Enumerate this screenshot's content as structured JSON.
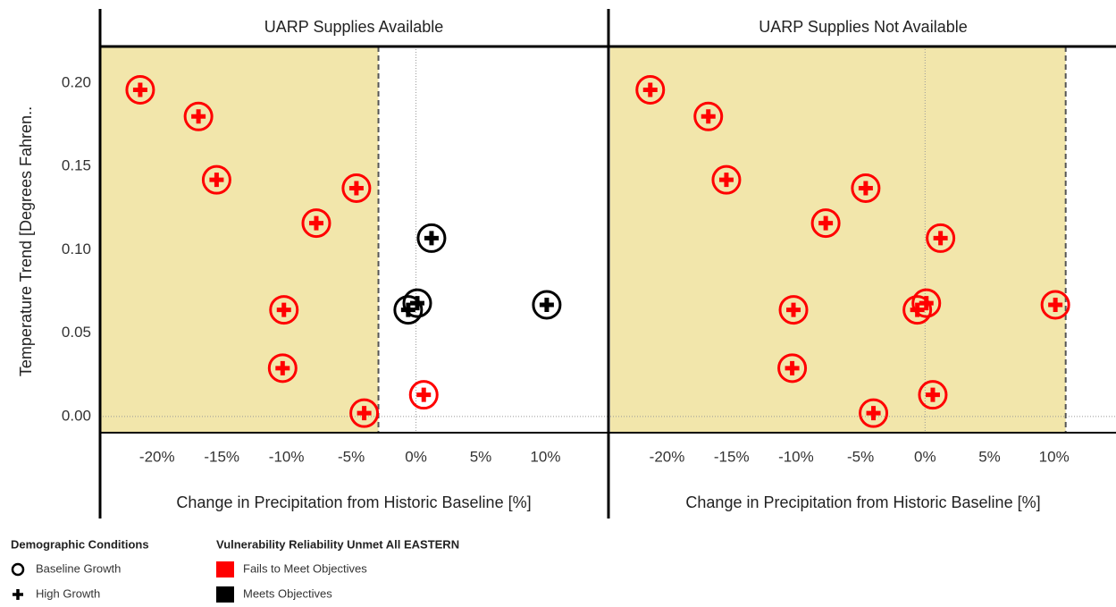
{
  "chart_data": {
    "type": "scatter",
    "y_label": "Temperature Trend [Degrees Fahren..",
    "x_label": "Change in Precipitation from Historic Baseline [%]",
    "xlim": [
      -24.4,
      14.8
    ],
    "ylim": [
      -0.0097,
      0.222
    ],
    "xticks": [
      {
        "value": -20,
        "label": "-20%"
      },
      {
        "value": -15,
        "label": "-15%"
      },
      {
        "value": -10,
        "label": "-10%"
      },
      {
        "value": -5,
        "label": "-5%"
      },
      {
        "value": 0,
        "label": "0%"
      },
      {
        "value": 5,
        "label": "5%"
      },
      {
        "value": 10,
        "label": "10%"
      }
    ],
    "yticks": [
      {
        "value": 0,
        "label": "0.00"
      },
      {
        "value": 0.05,
        "label": "0.05"
      },
      {
        "value": 0.1,
        "label": "0.10"
      },
      {
        "value": 0.15,
        "label": "0.15"
      },
      {
        "value": 0.2,
        "label": "0.20"
      }
    ],
    "zero_lines": true,
    "shade_color": "#f2e6ab",
    "panels": [
      {
        "title": "UARP Supplies Available",
        "shade_to": -2.9,
        "series": [
          {
            "name": "Fails to Meet Objectives",
            "color": "#ff0000",
            "x": [
              -21.3,
              -16.8,
              -15.4,
              -4.6,
              -7.7,
              -10.2,
              -10.3,
              -4.0,
              0.6
            ],
            "y": [
              0.196,
              0.18,
              0.142,
              0.137,
              0.116,
              0.064,
              0.029,
              0.002,
              0.013
            ]
          },
          {
            "name": "Meets Objectives",
            "color": "#000000",
            "x": [
              1.2,
              0.1,
              -0.6,
              10.1
            ],
            "y": [
              0.107,
              0.068,
              0.064,
              0.067
            ]
          }
        ]
      },
      {
        "title": "UARP Supplies Not Available",
        "shade_to": 10.9,
        "series": [
          {
            "name": "Fails to Meet Objectives",
            "color": "#ff0000",
            "x": [
              -21.3,
              -16.8,
              -15.4,
              -4.6,
              -7.7,
              -10.2,
              -10.3,
              -4.0,
              0.6,
              1.2,
              0.1,
              -0.6,
              10.1
            ],
            "y": [
              0.196,
              0.18,
              0.142,
              0.137,
              0.116,
              0.064,
              0.029,
              0.002,
              0.013,
              0.107,
              0.068,
              0.064,
              0.067
            ]
          }
        ]
      }
    ],
    "legend": {
      "shape_title": "Demographic Conditions",
      "shapes": [
        "Baseline Growth",
        "High Growth"
      ],
      "color_title": "Vulnerability Reliability Unmet All EASTERN"
    }
  }
}
